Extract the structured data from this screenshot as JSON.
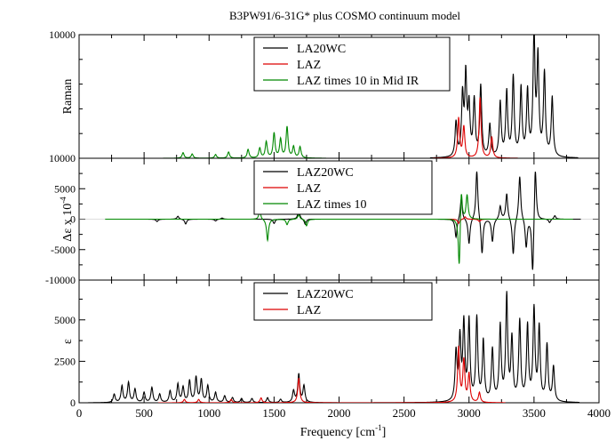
{
  "chart_data": [
    {
      "type": "line",
      "title": "B3PW91/6-31G* plus COSMO continuum model",
      "ylabel": "Raman",
      "xlim": [
        0,
        4000
      ],
      "ylim": [
        0,
        10000
      ],
      "yticks": [
        10000
      ],
      "legend_position": "top-center",
      "series": [
        {
          "name": "LA20WC",
          "color": "#000000",
          "peaks": [
            [
              2900,
              2800
            ],
            [
              2950,
              4800
            ],
            [
              2975,
              6400
            ],
            [
              3000,
              3900
            ],
            [
              3040,
              4500
            ],
            [
              3090,
              5700
            ],
            [
              3160,
              2600
            ],
            [
              3240,
              4400
            ],
            [
              3290,
              5200
            ],
            [
              3340,
              6400
            ],
            [
              3400,
              5500
            ],
            [
              3450,
              5200
            ],
            [
              3500,
              9700
            ],
            [
              3530,
              7800
            ],
            [
              3580,
              6700
            ],
            [
              3640,
              4800
            ]
          ]
        },
        {
          "name": "LAZ",
          "color": "#dd0000",
          "peaks": [
            [
              2920,
              3200
            ],
            [
              2960,
              2500
            ],
            [
              3085,
              4900
            ],
            [
              3175,
              1700
            ]
          ]
        },
        {
          "name": "LAZ times 10 in Mid IR",
          "color": "#008800",
          "peaks": [
            [
              800,
              450
            ],
            [
              870,
              350
            ],
            [
              1050,
              300
            ],
            [
              1150,
              500
            ],
            [
              1300,
              700
            ],
            [
              1390,
              800
            ],
            [
              1440,
              1300
            ],
            [
              1500,
              2000
            ],
            [
              1550,
              1500
            ],
            [
              1600,
              2500
            ],
            [
              1650,
              900
            ],
            [
              1700,
              900
            ]
          ]
        }
      ]
    },
    {
      "type": "line",
      "ylabel": "Δε x 10",
      "ylabel_exponent": "-4",
      "xlim": [
        0,
        4000
      ],
      "ylim": [
        -10000,
        10000
      ],
      "yticks": [
        -10000,
        -5000,
        0,
        5000,
        10000
      ],
      "legend_position": "top-center",
      "series": [
        {
          "name": "LAZ20WC",
          "color": "#000000",
          "peaks": [
            [
              600,
              -400
            ],
            [
              760,
              500
            ],
            [
              820,
              -800
            ],
            [
              1050,
              -300
            ],
            [
              1100,
              200
            ],
            [
              1500,
              -700
            ],
            [
              1690,
              1500
            ],
            [
              1740,
              -900
            ],
            [
              2900,
              -3100
            ],
            [
              2940,
              3500
            ],
            [
              3000,
              -4200
            ],
            [
              3060,
              8200
            ],
            [
              3100,
              -5900
            ],
            [
              3180,
              -3700
            ],
            [
              3240,
              2200
            ],
            [
              3290,
              4300
            ],
            [
              3340,
              -6000
            ],
            [
              3390,
              7300
            ],
            [
              3440,
              -4700
            ],
            [
              3490,
              -9800
            ],
            [
              3510,
              9500
            ],
            [
              3620,
              -600
            ],
            [
              3660,
              600
            ]
          ]
        },
        {
          "name": "LAZ",
          "color": "#dd0000",
          "peaks": [
            [
              2920,
              -700
            ],
            [
              2970,
              400
            ],
            [
              3080,
              -400
            ]
          ]
        },
        {
          "name": "LAZ times 10",
          "color": "#008800",
          "peaks": [
            [
              1390,
              1400
            ],
            [
              1450,
              -3500
            ],
            [
              1600,
              -900
            ],
            [
              1690,
              800
            ],
            [
              1750,
              -1100
            ],
            [
              2925,
              -9000
            ],
            [
              2940,
              6200
            ],
            [
              2985,
              4000
            ]
          ]
        }
      ]
    },
    {
      "type": "line",
      "ylabel": "ε",
      "xlabel": "Frequency [cm",
      "xlabel_exponent": "-1",
      "xlabel_suffix": "]",
      "xlim": [
        0,
        4000
      ],
      "ylim": [
        0,
        7400
      ],
      "xticks": [
        0,
        500,
        1000,
        1500,
        2000,
        2500,
        3000,
        3500,
        4000
      ],
      "yticks": [
        0,
        2500,
        5000
      ],
      "legend_position": "top-center",
      "series": [
        {
          "name": "LAZ20WC",
          "color": "#000000",
          "peaks": [
            [
              270,
              500
            ],
            [
              330,
              1000
            ],
            [
              380,
              1200
            ],
            [
              430,
              800
            ],
            [
              500,
              600
            ],
            [
              560,
              900
            ],
            [
              620,
              500
            ],
            [
              700,
              700
            ],
            [
              760,
              1100
            ],
            [
              800,
              900
            ],
            [
              850,
              1300
            ],
            [
              900,
              1500
            ],
            [
              940,
              1350
            ],
            [
              990,
              1000
            ],
            [
              1050,
              600
            ],
            [
              1120,
              400
            ],
            [
              1180,
              300
            ],
            [
              1250,
              250
            ],
            [
              1330,
              250
            ],
            [
              1450,
              300
            ],
            [
              1550,
              200
            ],
            [
              1650,
              700
            ],
            [
              1690,
              1700
            ],
            [
              1730,
              1000
            ],
            [
              2900,
              2900
            ],
            [
              2930,
              3700
            ],
            [
              2960,
              4600
            ],
            [
              3000,
              4800
            ],
            [
              3060,
              5000
            ],
            [
              3110,
              3600
            ],
            [
              3180,
              3100
            ],
            [
              3240,
              4500
            ],
            [
              3290,
              6300
            ],
            [
              3330,
              3700
            ],
            [
              3390,
              4800
            ],
            [
              3450,
              4500
            ],
            [
              3500,
              5500
            ],
            [
              3540,
              4400
            ],
            [
              3600,
              3400
            ],
            [
              3650,
              2100
            ]
          ]
        },
        {
          "name": "LAZ",
          "color": "#dd0000",
          "peaks": [
            [
              810,
              200
            ],
            [
              920,
              200
            ],
            [
              1170,
              200
            ],
            [
              1400,
              300
            ],
            [
              1690,
              1500
            ],
            [
              2920,
              3300
            ],
            [
              2960,
              2500
            ],
            [
              3000,
              1700
            ],
            [
              3080,
              600
            ]
          ]
        }
      ]
    }
  ]
}
